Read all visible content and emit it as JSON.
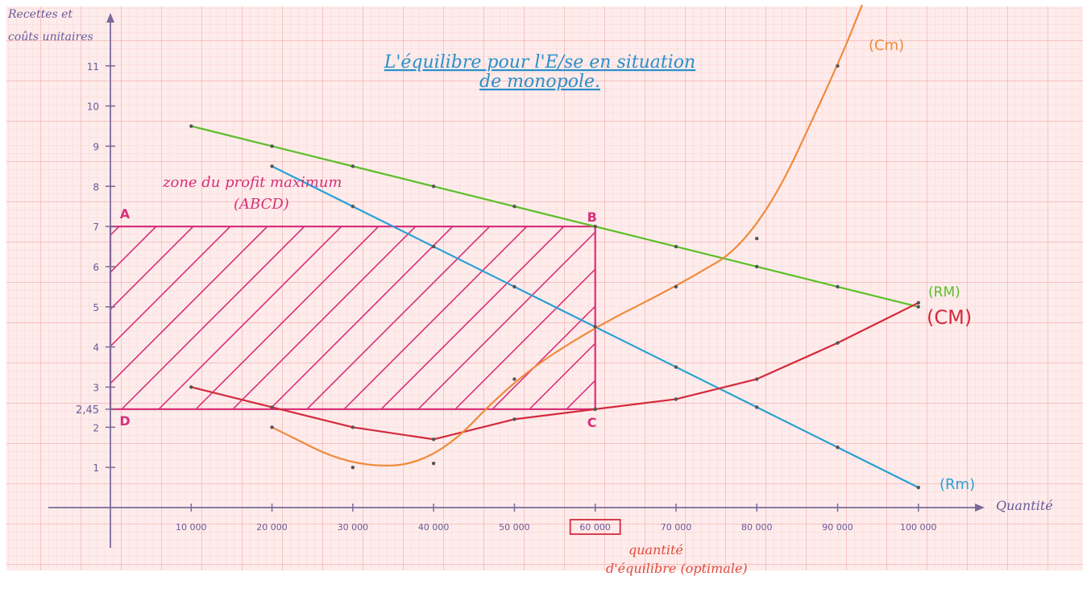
{
  "chart_data": {
    "type": "line",
    "title": "L'équilibre pour l'E/se en situation de monopole.",
    "title_lines": [
      "L'équilibre pour l'E/se en situation",
      "de monopole."
    ],
    "ylabel_lines": [
      "Recettes et",
      "coûts unitaires"
    ],
    "xlabel": "Quantité",
    "x_ticks": [
      {
        "value": 10000,
        "label": "10 000"
      },
      {
        "value": 20000,
        "label": "20 000"
      },
      {
        "value": 30000,
        "label": "30 000"
      },
      {
        "value": 40000,
        "label": "40 000"
      },
      {
        "value": 50000,
        "label": "50 000"
      },
      {
        "value": 60000,
        "label": "60 000"
      },
      {
        "value": 70000,
        "label": "70 000"
      },
      {
        "value": 80000,
        "label": "80 000"
      },
      {
        "value": 90000,
        "label": "90 000"
      },
      {
        "value": 100000,
        "label": "100 000"
      }
    ],
    "highlighted_x_tick": 60000,
    "y_ticks": [
      {
        "value": 1,
        "label": "1"
      },
      {
        "value": 2,
        "label": "2"
      },
      {
        "value": 2.45,
        "label": "2,45"
      },
      {
        "value": 3,
        "label": "3"
      },
      {
        "value": 4,
        "label": "4"
      },
      {
        "value": 5,
        "label": "5"
      },
      {
        "value": 6,
        "label": "6"
      },
      {
        "value": 7,
        "label": "7"
      },
      {
        "value": 8,
        "label": "8"
      },
      {
        "value": 9,
        "label": "9"
      },
      {
        "value": 10,
        "label": "10"
      },
      {
        "value": 11,
        "label": "11"
      }
    ],
    "xlim": [
      0,
      107000
    ],
    "ylim": [
      0,
      12.4
    ],
    "series": [
      {
        "name": "(RM)",
        "color": "#5cbf2a",
        "x": [
          10000,
          20000,
          30000,
          40000,
          50000,
          60000,
          70000,
          80000,
          90000,
          100000
        ],
        "y": [
          9.5,
          9,
          8.5,
          8,
          7.5,
          7,
          6.5,
          6,
          5.5,
          5
        ]
      },
      {
        "name": "(Rm)",
        "color": "#2a9fd6",
        "x": [
          20000,
          30000,
          40000,
          50000,
          60000,
          70000,
          80000,
          90000,
          100000
        ],
        "y": [
          8.5,
          7.5,
          6.5,
          5.5,
          4.5,
          3.5,
          2.5,
          1.5,
          0.5
        ]
      },
      {
        "name": "(CM)",
        "color": "#d42a3c",
        "x": [
          10000,
          20000,
          30000,
          40000,
          50000,
          60000,
          70000,
          80000,
          90000,
          100000
        ],
        "y": [
          3,
          2.5,
          2,
          1.7,
          2.2,
          2.45,
          2.7,
          3.2,
          4.1,
          5.1
        ]
      },
      {
        "name": "(Cm)",
        "color": "#f08a3c",
        "x": [
          20000,
          30000,
          40000,
          50000,
          60000,
          70000,
          80000,
          90000,
          93000
        ],
        "y": [
          2,
          1,
          1.1,
          3.2,
          4.5,
          5.5,
          6.7,
          11,
          12.5
        ]
      }
    ],
    "profit_zone": {
      "label_lines": [
        "zone du profit maximum",
        "(ABCD)"
      ],
      "x": [
        0,
        60000
      ],
      "y": [
        2.45,
        7
      ],
      "color": "#d8307a",
      "vertices": [
        {
          "name": "A",
          "x": 0,
          "y": 7
        },
        {
          "name": "B",
          "x": 60000,
          "y": 7
        },
        {
          "name": "C",
          "x": 60000,
          "y": 2.45
        },
        {
          "name": "D",
          "x": 0,
          "y": 2.45
        }
      ]
    },
    "annotation": {
      "lines": [
        "quantité",
        "d'équilibre (optimale)"
      ],
      "x": 60000,
      "color": "#e04a3c"
    },
    "grid": true,
    "grid_colors": {
      "minor": "#fad6d6",
      "major": "#f1a8a8",
      "background": "#fdeceb"
    },
    "axis_color": "#7a6a9a"
  }
}
